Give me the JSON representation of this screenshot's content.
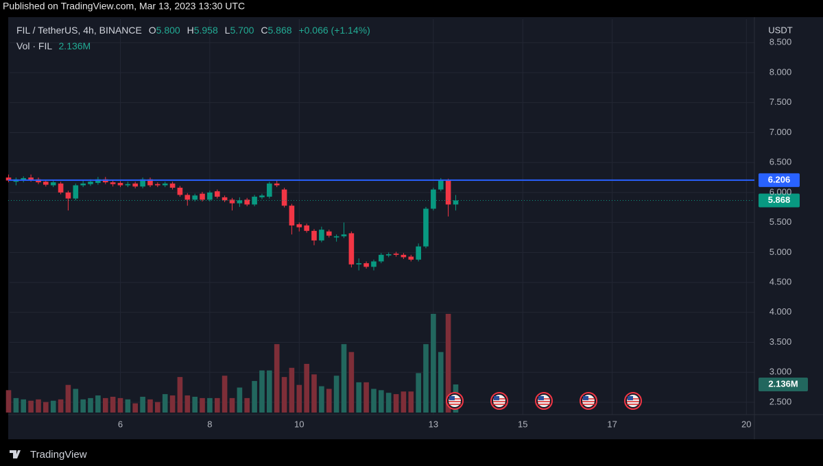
{
  "published": "Published on TradingView.com, Mar 13, 2023 13:30 UTC",
  "brand": "TradingView",
  "chart_data": {
    "type": "candlestick",
    "legend": {
      "symbol": "FIL / TetherUS, 4h, BINANCE",
      "o": "O",
      "open": "5.800",
      "h": "H",
      "high": "5.958",
      "l": "L",
      "low": "5.700",
      "c": "C",
      "close": "5.868",
      "change": "+0.066 (+1.14%)",
      "volume_name": "Vol · FIL",
      "volume": "2.136M"
    },
    "y_unit": "USDT",
    "x": [
      3.5,
      3.667,
      3.833,
      4,
      4.167,
      4.333,
      4.5,
      4.667,
      4.833,
      5,
      5.167,
      5.333,
      5.5,
      5.667,
      5.833,
      6,
      6.167,
      6.333,
      6.5,
      6.667,
      6.833,
      7,
      7.167,
      7.333,
      7.5,
      7.667,
      7.833,
      8,
      8.167,
      8.333,
      8.5,
      8.667,
      8.833,
      9,
      9.167,
      9.333,
      9.5,
      9.667,
      9.833,
      10,
      10.167,
      10.333,
      10.5,
      10.667,
      10.833,
      11,
      11.167,
      11.333,
      11.5,
      11.667,
      11.833,
      12,
      12.167,
      12.333,
      12.5,
      12.667,
      12.833,
      13,
      13.167,
      13.333,
      13.5
    ],
    "open": [
      6.25,
      6.18,
      6.2,
      6.25,
      6.22,
      6.18,
      6.12,
      6.15,
      6.0,
      5.9,
      6.12,
      6.14,
      6.16,
      6.22,
      6.17,
      6.16,
      6.12,
      6.15,
      6.1,
      6.22,
      6.14,
      6.12,
      6.15,
      6.08,
      5.96,
      5.88,
      5.98,
      5.88,
      6.02,
      5.92,
      5.88,
      5.82,
      5.88,
      5.8,
      5.92,
      5.93,
      6.15,
      6.05,
      5.78,
      5.47,
      5.45,
      5.36,
      5.2,
      5.35,
      5.25,
      5.27,
      5.32,
      4.8,
      4.82,
      4.76,
      4.85,
      4.95,
      4.98,
      4.96,
      4.93,
      4.88,
      5.1,
      5.73,
      6.05,
      6.2,
      5.8
    ],
    "high": [
      6.3,
      6.25,
      6.27,
      6.3,
      6.25,
      6.21,
      6.2,
      6.18,
      6.03,
      6.15,
      6.2,
      6.22,
      6.26,
      6.26,
      6.2,
      6.19,
      6.18,
      6.18,
      6.25,
      6.25,
      6.17,
      6.18,
      6.18,
      6.11,
      5.99,
      5.98,
      6.01,
      6.03,
      6.05,
      5.95,
      5.91,
      5.92,
      5.91,
      5.96,
      5.98,
      6.18,
      6.2,
      6.08,
      5.81,
      5.5,
      5.48,
      5.39,
      5.43,
      5.38,
      5.3,
      5.5,
      5.35,
      4.9,
      4.85,
      4.88,
      4.99,
      5.0,
      5.01,
      4.99,
      4.96,
      5.15,
      5.76,
      6.08,
      6.24,
      6.23,
      5.958
    ],
    "low": [
      6.17,
      6.12,
      6.17,
      6.18,
      6.14,
      6.1,
      6.09,
      5.97,
      5.7,
      5.87,
      6.09,
      6.11,
      6.13,
      6.14,
      6.1,
      6.09,
      6.09,
      6.07,
      6.07,
      6.09,
      6.09,
      6.09,
      6.05,
      5.93,
      5.78,
      5.85,
      5.85,
      5.85,
      5.9,
      5.84,
      5.7,
      5.76,
      5.77,
      5.77,
      5.89,
      5.9,
      6.09,
      5.75,
      5.3,
      5.35,
      5.33,
      5.12,
      5.17,
      5.25,
      5.18,
      5.24,
      4.75,
      4.7,
      4.73,
      4.7,
      4.82,
      4.92,
      4.93,
      4.89,
      4.85,
      4.85,
      5.07,
      5.7,
      6.02,
      5.6,
      5.7
    ],
    "close": [
      6.2,
      6.22,
      6.24,
      6.2,
      6.17,
      6.13,
      6.17,
      6.0,
      5.9,
      6.12,
      6.15,
      6.18,
      6.22,
      6.17,
      6.14,
      6.12,
      6.14,
      6.1,
      6.22,
      6.12,
      6.12,
      6.15,
      6.08,
      5.96,
      5.88,
      5.95,
      5.88,
      6.0,
      5.93,
      5.87,
      5.82,
      5.87,
      5.8,
      5.93,
      5.95,
      6.15,
      6.12,
      5.78,
      5.45,
      5.42,
      5.36,
      5.2,
      5.38,
      5.28,
      5.27,
      5.3,
      4.8,
      4.82,
      4.76,
      4.85,
      4.96,
      4.97,
      4.96,
      4.92,
      4.88,
      5.1,
      5.73,
      6.05,
      6.2,
      5.8,
      5.868
    ],
    "volume": [
      1.7,
      1.1,
      1.0,
      0.9,
      1.0,
      0.8,
      0.9,
      1.0,
      2.1,
      1.8,
      1.0,
      1.1,
      1.3,
      1.1,
      1.2,
      1.1,
      1.0,
      0.7,
      1.2,
      1.0,
      0.8,
      1.4,
      1.3,
      2.7,
      1.3,
      1.2,
      1.1,
      1.1,
      1.1,
      2.8,
      1.1,
      1.9,
      1.1,
      2.4,
      3.2,
      3.2,
      5.2,
      2.7,
      3.4,
      2.1,
      3.7,
      2.9,
      2.0,
      1.8,
      2.8,
      5.2,
      4.6,
      2.3,
      2.3,
      1.8,
      1.7,
      1.5,
      1.4,
      1.6,
      1.6,
      3.0,
      5.2,
      7.5,
      4.6,
      7.5,
      2.136
    ],
    "volume_label": "2.136M",
    "up_color": "#089981",
    "down_color": "#f23645",
    "volume_up_color": "#22675e",
    "volume_down_color": "#7e2e38",
    "xlim": [
      3.523,
      20.18
    ],
    "xticks": [
      6,
      8,
      10,
      13,
      15,
      17,
      20
    ],
    "ylim": [
      2.294,
      8.892
    ],
    "yticks": [
      {
        "value": 2.5,
        "label": "2.500"
      },
      {
        "value": 3,
        "label": "3.000"
      },
      {
        "value": 3.5,
        "label": "3.500"
      },
      {
        "value": 4,
        "label": "4.000"
      },
      {
        "value": 4.5,
        "label": "4.500"
      },
      {
        "value": 5,
        "label": "5.000"
      },
      {
        "value": 5.5,
        "label": "5.500"
      },
      {
        "value": 6,
        "label": "6.000"
      },
      {
        "value": 6.5,
        "label": "6.500"
      },
      {
        "value": 7,
        "label": "7.000"
      },
      {
        "value": 7.5,
        "label": "7.500"
      },
      {
        "value": 8,
        "label": "8.000"
      },
      {
        "value": 8.5,
        "label": "8.500"
      }
    ],
    "grid": true,
    "horizontal_line": {
      "value": 6.206,
      "label": "6.206",
      "color": "#2962ff"
    },
    "last_price": {
      "value": 5.868,
      "label": "5.868",
      "color": "#089981"
    }
  }
}
